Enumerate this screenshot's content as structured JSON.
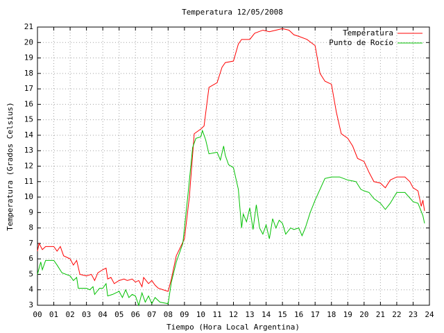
{
  "chart_data": {
    "type": "line",
    "title": "Temperatura 12/05/2008",
    "x_label": "Tiempo (Hora Local Argentina)",
    "y_label": "Temperatura (Grados Celsius)",
    "xlim": [
      0,
      24
    ],
    "ylim": [
      3,
      21
    ],
    "xticks": [
      {
        "value": 0,
        "label": "00"
      },
      {
        "value": 1,
        "label": "01"
      },
      {
        "value": 2,
        "label": "02"
      },
      {
        "value": 3,
        "label": "03"
      },
      {
        "value": 4,
        "label": "04"
      },
      {
        "value": 5,
        "label": "05"
      },
      {
        "value": 6,
        "label": "06"
      },
      {
        "value": 7,
        "label": "07"
      },
      {
        "value": 8,
        "label": "08"
      },
      {
        "value": 9,
        "label": "09"
      },
      10,
      11,
      12,
      13,
      14,
      15,
      16,
      17,
      18,
      19,
      20,
      21,
      22,
      23,
      24
    ],
    "yticks": [
      3,
      4,
      5,
      6,
      7,
      8,
      9,
      10,
      11,
      12,
      13,
      14,
      15,
      16,
      17,
      18,
      19,
      20,
      21
    ],
    "grid": true,
    "legend": "top-right",
    "series": [
      {
        "name": "Temperatura",
        "color": "#ff0000",
        "x": [
          0,
          0.1,
          0.3,
          0.5,
          1,
          1.2,
          1.4,
          1.6,
          2,
          2.2,
          2.4,
          2.6,
          3,
          3.3,
          3.5,
          3.7,
          4,
          4.2,
          4.3,
          4.5,
          4.7,
          5,
          5.3,
          5.5,
          5.8,
          6,
          6.2,
          6.4,
          6.5,
          6.8,
          7,
          7.2,
          7.4,
          7.7,
          8,
          8.2,
          8.5,
          9,
          9.3,
          9.6,
          10,
          10.2,
          10.5,
          11,
          11.3,
          11.5,
          12,
          12.3,
          12.5,
          13,
          13.3,
          13.8,
          14.2,
          14.6,
          15,
          15.4,
          15.7,
          16,
          16.5,
          17,
          17.3,
          17.6,
          18,
          18.3,
          18.6,
          19,
          19.3,
          19.6,
          20,
          20.3,
          20.6,
          21,
          21.3,
          21.6,
          22,
          22.5,
          22.8,
          23,
          23.3,
          23.5,
          23.6,
          23.7
        ],
        "values": [
          6.5,
          7.0,
          6.6,
          6.8,
          6.8,
          6.5,
          6.8,
          6.2,
          6.0,
          5.6,
          5.9,
          5.0,
          4.9,
          5.0,
          4.6,
          5.1,
          5.3,
          5.4,
          4.7,
          4.8,
          4.4,
          4.6,
          4.7,
          4.6,
          4.7,
          4.5,
          4.6,
          4.2,
          4.8,
          4.4,
          4.6,
          4.3,
          4.1,
          4.0,
          3.9,
          4.7,
          6.2,
          7.3,
          10.0,
          14.1,
          14.4,
          14.6,
          17.1,
          17.4,
          18.4,
          18.7,
          18.8,
          19.9,
          20.2,
          20.2,
          20.6,
          20.8,
          20.7,
          20.8,
          20.9,
          20.8,
          20.5,
          20.4,
          20.2,
          19.8,
          18.0,
          17.5,
          17.3,
          15.5,
          14.1,
          13.8,
          13.3,
          12.5,
          12.3,
          11.6,
          11.0,
          10.9,
          10.6,
          11.1,
          11.3,
          11.3,
          11.0,
          10.6,
          10.4,
          9.4,
          9.8,
          9.1
        ]
      },
      {
        "name": "Punto de Rocío",
        "color": "#00c000",
        "x": [
          0,
          0.2,
          0.3,
          0.5,
          1,
          1.2,
          1.5,
          2,
          2.2,
          2.4,
          2.5,
          3,
          3.2,
          3.4,
          3.5,
          3.8,
          4,
          4.2,
          4.3,
          4.6,
          5,
          5.2,
          5.4,
          5.6,
          5.8,
          6,
          6.2,
          6.4,
          6.6,
          6.8,
          7,
          7.2,
          7.5,
          8,
          8.2,
          8.5,
          8.9,
          9.2,
          9.5,
          9.7,
          10,
          10.1,
          10.3,
          10.5,
          11,
          11.2,
          11.4,
          11.5,
          11.7,
          12,
          12.3,
          12.5,
          12.6,
          12.8,
          13,
          13.2,
          13.4,
          13.6,
          13.8,
          14,
          14.2,
          14.4,
          14.6,
          14.8,
          15,
          15.2,
          15.5,
          15.7,
          16,
          16.2,
          16.4,
          16.7,
          17,
          17.3,
          17.6,
          18,
          18.5,
          19,
          19.5,
          19.8,
          20,
          20.3,
          20.6,
          21,
          21.3,
          21.6,
          22,
          22.5,
          23,
          23.3,
          23.6,
          23.7
        ],
        "values": [
          5.0,
          5.8,
          5.3,
          5.9,
          5.9,
          5.6,
          5.1,
          4.9,
          4.6,
          4.8,
          4.1,
          4.1,
          4.0,
          4.2,
          3.7,
          4.1,
          4.1,
          4.4,
          3.6,
          3.7,
          3.9,
          3.5,
          4.0,
          3.5,
          3.7,
          3.6,
          3.0,
          3.8,
          3.2,
          3.6,
          3.1,
          3.5,
          3.2,
          3.1,
          4.5,
          5.8,
          7.0,
          10.0,
          13.2,
          13.8,
          13.9,
          14.3,
          13.7,
          12.8,
          12.9,
          12.4,
          13.3,
          12.7,
          12.1,
          11.9,
          10.5,
          8.0,
          8.9,
          8.4,
          9.3,
          7.9,
          9.5,
          8.0,
          7.6,
          8.2,
          7.3,
          8.6,
          8.0,
          8.5,
          8.3,
          7.6,
          8.0,
          7.9,
          8.0,
          7.5,
          8.0,
          9.0,
          9.8,
          10.5,
          11.2,
          11.3,
          11.3,
          11.1,
          11.0,
          10.5,
          10.4,
          10.3,
          9.9,
          9.6,
          9.2,
          9.6,
          10.3,
          10.3,
          9.7,
          9.6,
          8.8,
          8.3
        ]
      }
    ]
  }
}
